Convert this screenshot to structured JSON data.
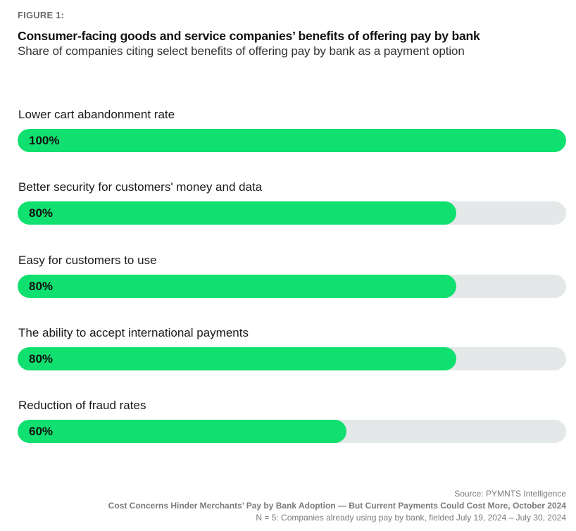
{
  "figure_label": "FIGURE 1:",
  "colors": {
    "fill": "#10e06f",
    "track": "#e4e8e8"
  },
  "chart_data": {
    "type": "bar",
    "orientation": "horizontal",
    "title": "Consumer-facing goods and service companies’ benefits of offering pay by bank",
    "subtitle": "Share of companies citing select benefits of offering pay by bank as a payment option",
    "categories": [
      "Lower cart abandonment rate",
      "Better security for customers' money and data",
      "Easy for customers to use",
      "The ability to accept international payments",
      "Reduction of fraud rates"
    ],
    "values": [
      100,
      80,
      80,
      80,
      60
    ],
    "value_labels": [
      "100%",
      "80%",
      "80%",
      "80%",
      "60%"
    ],
    "unit": "%",
    "xlim": [
      0,
      100
    ],
    "xlabel": "",
    "ylabel": "",
    "grid": false,
    "legend": "none"
  },
  "footer": {
    "source": "Source: PYMNTS Intelligence",
    "report": "Cost Concerns Hinder Merchants’ Pay by Bank Adoption — But Current Payments Could Cost More, October 2024",
    "sample": "N = 5: Companies already using pay by bank, fielded July 19, 2024 – July 30, 2024"
  }
}
